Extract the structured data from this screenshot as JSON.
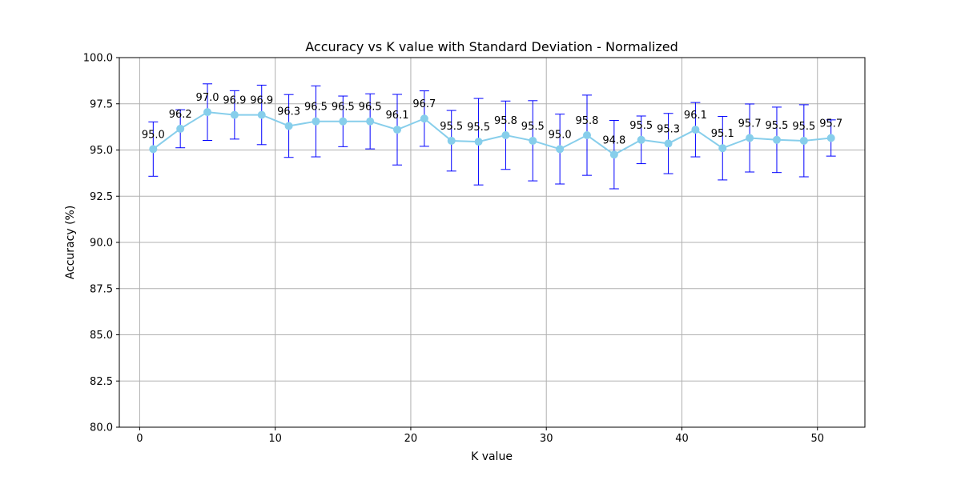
{
  "chart_data": {
    "type": "line",
    "title": "Accuracy vs K value with Standard Deviation - Normalized",
    "xlabel": "K value",
    "ylabel": "Accuracy (%)",
    "xlim": [
      -1.5,
      53.5
    ],
    "ylim": [
      80.0,
      100.0
    ],
    "xticks": [
      0,
      10,
      20,
      30,
      40,
      50
    ],
    "yticks": [
      80.0,
      82.5,
      85.0,
      87.5,
      90.0,
      92.5,
      95.0,
      97.5,
      100.0
    ],
    "xtick_labels": [
      "0",
      "10",
      "20",
      "30",
      "40",
      "50"
    ],
    "ytick_labels": [
      "80.0",
      "82.5",
      "85.0",
      "87.5",
      "90.0",
      "92.5",
      "95.0",
      "97.5",
      "100.0"
    ],
    "grid": true,
    "series": [
      {
        "x": [
          1,
          3,
          5,
          7,
          9,
          11,
          13,
          15,
          17,
          19,
          21,
          23,
          25,
          27,
          29,
          31,
          33,
          35,
          37,
          39,
          41,
          43,
          45,
          47,
          49,
          51
        ],
        "y": [
          95.05,
          96.15,
          97.05,
          96.9,
          96.9,
          96.3,
          96.55,
          96.55,
          96.55,
          96.1,
          96.7,
          95.5,
          95.45,
          95.8,
          95.5,
          95.05,
          95.8,
          94.75,
          95.55,
          95.35,
          96.1,
          95.1,
          95.65,
          95.55,
          95.5,
          95.65
        ],
        "std": [
          1.47,
          1.03,
          1.53,
          1.31,
          1.61,
          1.7,
          1.92,
          1.37,
          1.49,
          1.91,
          1.5,
          1.64,
          2.34,
          1.85,
          2.17,
          1.89,
          2.17,
          1.85,
          1.29,
          1.63,
          1.47,
          1.72,
          1.84,
          1.77,
          1.95,
          0.98
        ],
        "labels": [
          "95.0",
          "96.2",
          "97.0",
          "96.9",
          "96.9",
          "96.3",
          "96.5",
          "96.5",
          "96.5",
          "96.1",
          "96.7",
          "95.5",
          "95.5",
          "95.8",
          "95.5",
          "95.0",
          "95.8",
          "94.8",
          "95.5",
          "95.3",
          "96.1",
          "95.1",
          "95.7",
          "95.5",
          "95.5",
          "95.7"
        ],
        "line_color": "#87ceeb",
        "marker_color": "#87ceeb",
        "errorbar_color": "#0000ff"
      }
    ]
  }
}
